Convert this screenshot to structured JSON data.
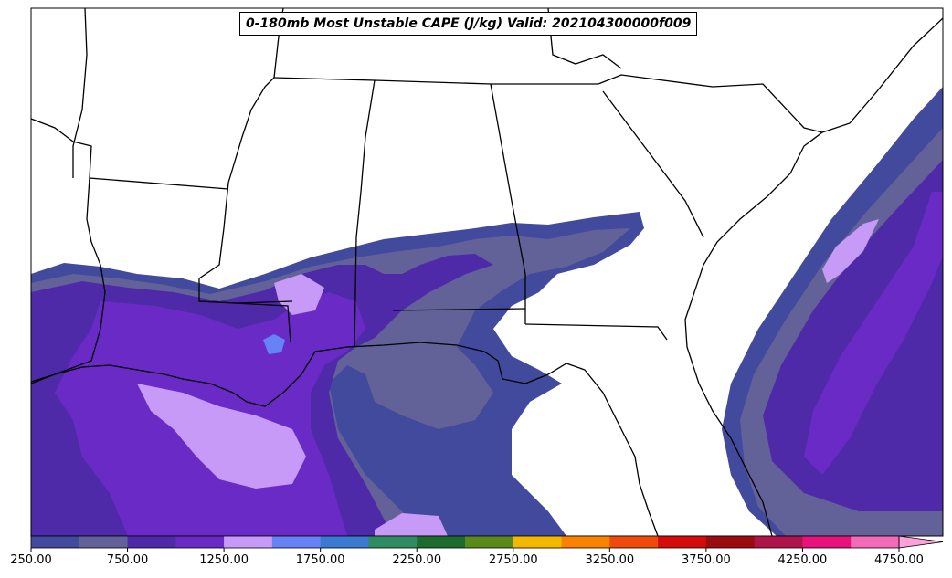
{
  "title": "0-180mb Most Unstable CAPE (J/kg) Valid: 202104300000f009",
  "colorbar": {
    "tick_labels": [
      "250.00",
      "750.00",
      "1250.00",
      "1750.00",
      "2250.00",
      "2750.00",
      "3250.00",
      "3750.00",
      "4250.00",
      "4750.00"
    ],
    "bins": [
      {
        "from": 250,
        "to": 500,
        "color": "#414a9c"
      },
      {
        "from": 500,
        "to": 750,
        "color": "#626299"
      },
      {
        "from": 750,
        "to": 1000,
        "color": "#4f2aa8"
      },
      {
        "from": 1000,
        "to": 1250,
        "color": "#6a2ac6"
      },
      {
        "from": 1250,
        "to": 1500,
        "color": "#c89af7"
      },
      {
        "from": 1500,
        "to": 1750,
        "color": "#6683f5"
      },
      {
        "from": 1750,
        "to": 2000,
        "color": "#3a7ad0"
      },
      {
        "from": 2000,
        "to": 2250,
        "color": "#2e8b62"
      },
      {
        "from": 2250,
        "to": 2500,
        "color": "#1e6b30"
      },
      {
        "from": 2500,
        "to": 2750,
        "color": "#5a8a1a"
      },
      {
        "from": 2750,
        "to": 3000,
        "color": "#f5b800"
      },
      {
        "from": 3000,
        "to": 3250,
        "color": "#fa8200"
      },
      {
        "from": 3250,
        "to": 3500,
        "color": "#ef4a0c"
      },
      {
        "from": 3500,
        "to": 3750,
        "color": "#d40b0b"
      },
      {
        "from": 3750,
        "to": 4000,
        "color": "#9c0b10"
      },
      {
        "from": 4000,
        "to": 4250,
        "color": "#b0124a"
      },
      {
        "from": 4250,
        "to": 4500,
        "color": "#e8127a"
      },
      {
        "from": 4500,
        "to": 4750,
        "color": "#f56ab8"
      },
      {
        "from": 4750,
        "to": 5000,
        "color": "#ffa0d8"
      }
    ]
  },
  "legend": {
    "shading": {
      "250-500": "#414a9c",
      "500-750": "#626299",
      "750-1000": "#4f2aa8",
      "1000-1250": "#6a2ac6",
      "1250-1500": "#c89af7",
      "1500-1750": "#6683f5"
    }
  }
}
